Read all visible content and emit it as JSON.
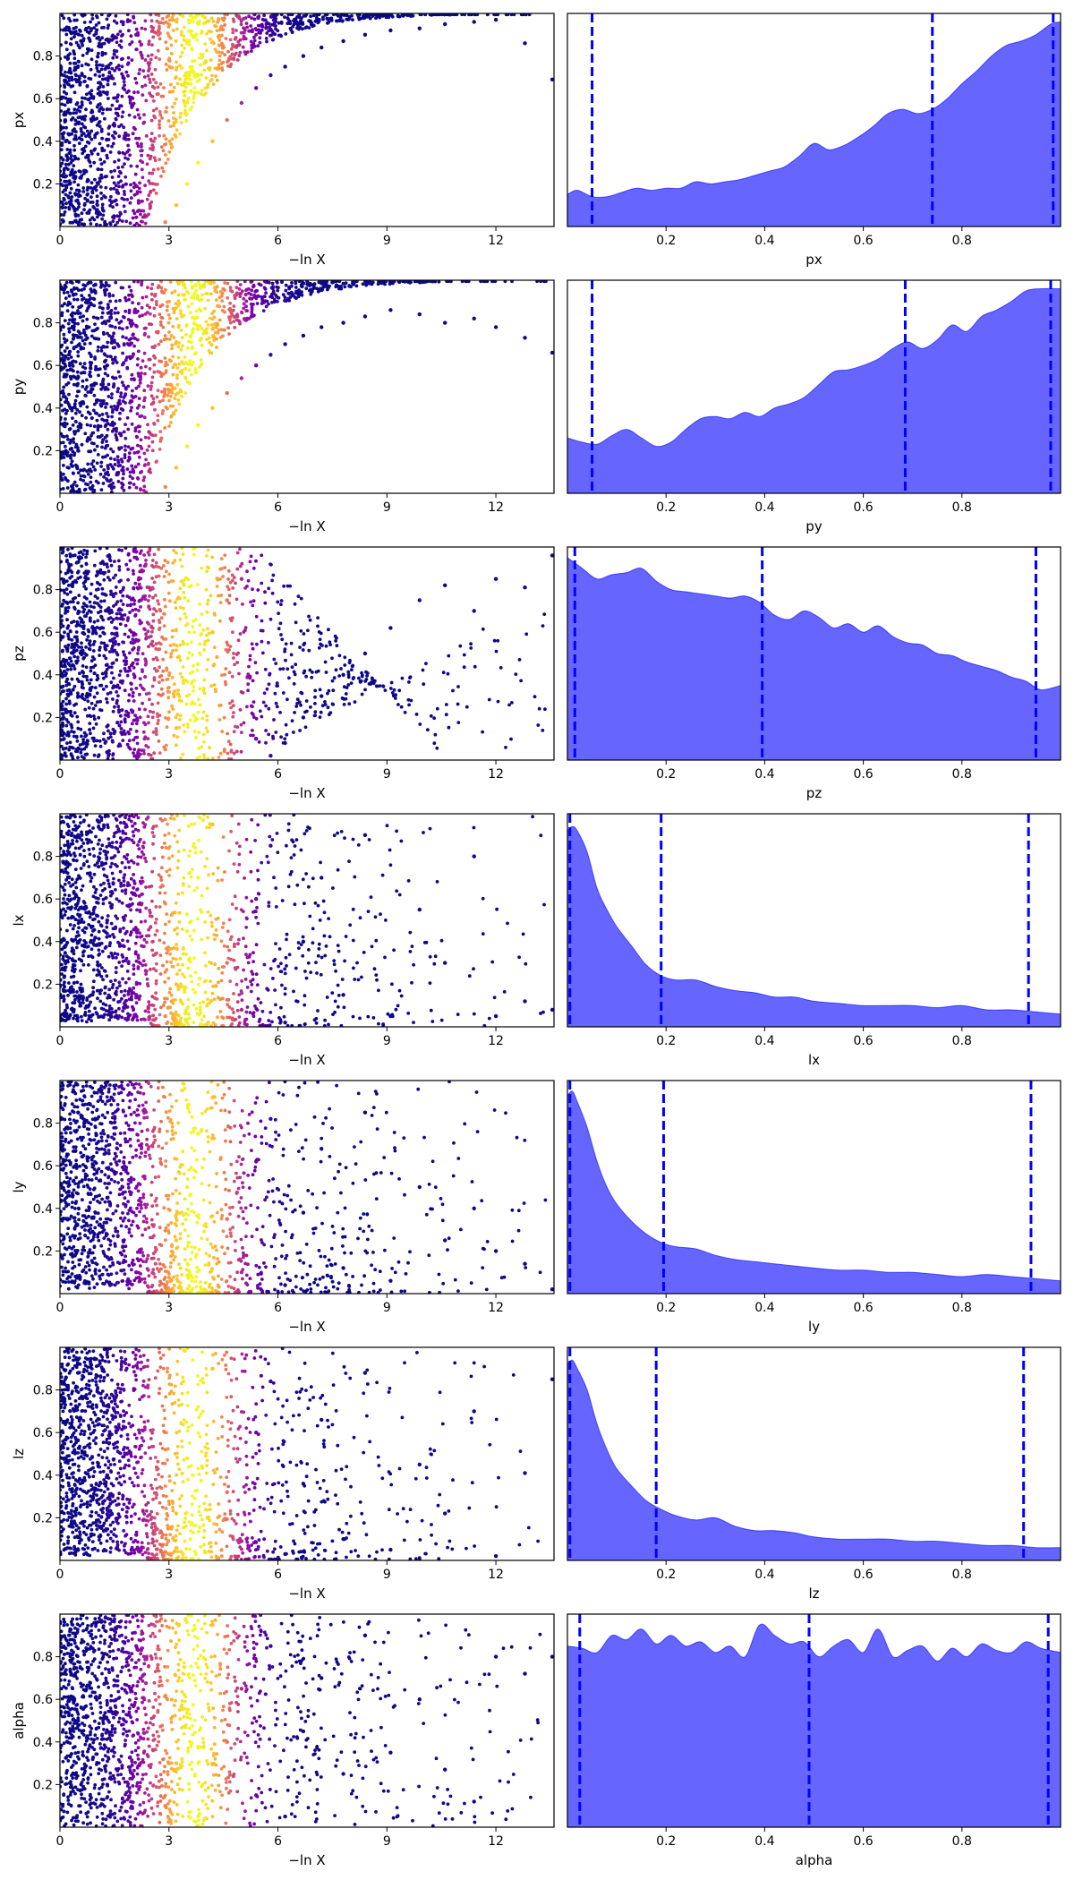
{
  "colors": {
    "posterior_fill": "#6666ff",
    "posterior_line": "#0000ff",
    "quantile_line": "#0000ff",
    "scatter_colormap": "plasma"
  },
  "chart_data": [
    {
      "type": "scatter",
      "param": "px",
      "xlabel": "−ln X",
      "ylabel": "px",
      "xlim": [
        0,
        13.6
      ],
      "ylim": [
        0,
        1
      ],
      "x_ticks": [
        0,
        3,
        6,
        9,
        12
      ],
      "y_ticks": [
        0.2,
        0.4,
        0.6,
        0.8
      ],
      "color_scale": "plasma, peak near −ln X ≈ 3.7",
      "x": [
        0.5,
        1.3,
        2.1,
        2.9,
        3.2,
        3.5,
        3.8,
        4.2,
        4.6,
        5.0,
        5.4,
        5.8,
        6.2,
        6.7,
        7.2,
        7.8,
        8.4,
        9.1,
        9.9,
        10.6,
        11.4,
        12.0,
        12.8,
        13.55
      ],
      "y": [
        0.15,
        0.55,
        0.9,
        0.02,
        0.1,
        0.2,
        0.3,
        0.4,
        0.5,
        0.58,
        0.65,
        0.71,
        0.75,
        0.8,
        0.84,
        0.87,
        0.9,
        0.92,
        0.93,
        0.95,
        0.96,
        0.97,
        0.86,
        0.69
      ]
    },
    {
      "type": "area",
      "param": "px",
      "xlabel": "px",
      "ylabel": "",
      "xlim": [
        0,
        1
      ],
      "ylim": [
        0,
        1
      ],
      "x_ticks": [
        0.2,
        0.4,
        0.6,
        0.8
      ],
      "x": [
        0.0,
        0.02,
        0.05,
        0.08,
        0.11,
        0.14,
        0.17,
        0.2,
        0.23,
        0.26,
        0.29,
        0.32,
        0.35,
        0.38,
        0.41,
        0.44,
        0.47,
        0.5,
        0.53,
        0.56,
        0.59,
        0.62,
        0.65,
        0.68,
        0.71,
        0.74,
        0.77,
        0.8,
        0.83,
        0.86,
        0.89,
        0.92,
        0.95,
        0.98,
        1.0
      ],
      "y": [
        0.15,
        0.17,
        0.14,
        0.14,
        0.16,
        0.18,
        0.17,
        0.18,
        0.18,
        0.21,
        0.2,
        0.21,
        0.22,
        0.24,
        0.26,
        0.28,
        0.33,
        0.39,
        0.36,
        0.38,
        0.42,
        0.47,
        0.53,
        0.55,
        0.53,
        0.55,
        0.6,
        0.67,
        0.73,
        0.8,
        0.85,
        0.87,
        0.9,
        0.95,
        0.96
      ],
      "quantiles": [
        0.05,
        0.74,
        0.985
      ]
    },
    {
      "type": "scatter",
      "param": "py",
      "xlabel": "−ln X",
      "ylabel": "py",
      "xlim": [
        0,
        13.6
      ],
      "ylim": [
        0,
        1
      ],
      "x_ticks": [
        0,
        3,
        6,
        9,
        12
      ],
      "y_ticks": [
        0.2,
        0.4,
        0.6,
        0.8
      ],
      "color_scale": "plasma, peak near −ln X ≈ 3.7",
      "x": [
        0.5,
        1.3,
        2.1,
        2.9,
        3.2,
        3.5,
        3.8,
        4.2,
        4.6,
        5.0,
        5.4,
        5.8,
        6.2,
        6.7,
        7.2,
        7.8,
        8.4,
        9.1,
        9.9,
        10.6,
        11.4,
        12.0,
        12.8,
        13.55
      ],
      "y": [
        0.2,
        0.6,
        0.85,
        0.03,
        0.12,
        0.22,
        0.32,
        0.4,
        0.47,
        0.54,
        0.6,
        0.65,
        0.7,
        0.74,
        0.78,
        0.8,
        0.83,
        0.86,
        0.84,
        0.8,
        0.82,
        0.78,
        0.73,
        0.66
      ],
      "note": "posterior panel shows quantiles"
    },
    {
      "type": "area",
      "param": "py",
      "xlabel": "py",
      "ylabel": "",
      "xlim": [
        0,
        1
      ],
      "ylim": [
        0,
        1
      ],
      "x_ticks": [
        0.2,
        0.4,
        0.6,
        0.8
      ],
      "x": [
        0.0,
        0.03,
        0.06,
        0.09,
        0.12,
        0.15,
        0.18,
        0.21,
        0.24,
        0.27,
        0.3,
        0.33,
        0.36,
        0.39,
        0.42,
        0.45,
        0.48,
        0.51,
        0.54,
        0.57,
        0.6,
        0.63,
        0.66,
        0.69,
        0.72,
        0.75,
        0.78,
        0.81,
        0.84,
        0.87,
        0.9,
        0.93,
        0.96,
        1.0
      ],
      "y": [
        0.26,
        0.24,
        0.23,
        0.27,
        0.3,
        0.26,
        0.22,
        0.24,
        0.3,
        0.35,
        0.36,
        0.35,
        0.38,
        0.36,
        0.4,
        0.42,
        0.45,
        0.51,
        0.57,
        0.58,
        0.6,
        0.63,
        0.68,
        0.71,
        0.68,
        0.72,
        0.79,
        0.76,
        0.83,
        0.86,
        0.9,
        0.95,
        0.96,
        0.96
      ],
      "quantiles": [
        0.05,
        0.685,
        0.98
      ]
    },
    {
      "type": "scatter",
      "param": "pz",
      "xlabel": "−ln X",
      "ylabel": "pz",
      "xlim": [
        0,
        13.6
      ],
      "ylim": [
        0,
        1
      ],
      "x_ticks": [
        0,
        3,
        6,
        9,
        12
      ],
      "y_ticks": [
        0.2,
        0.4,
        0.6,
        0.8
      ],
      "color_scale": "plasma, peak near −ln X ≈ 3.7",
      "x": [
        0.5,
        1.3,
        2.1,
        2.9,
        3.2,
        3.5,
        3.8,
        4.2,
        4.6,
        5.0,
        5.4,
        5.8,
        6.2,
        6.7,
        7.2,
        7.8,
        8.4,
        9.1,
        9.9,
        10.6,
        11.4,
        12.0,
        12.8,
        13.55
      ],
      "y": [
        0.3,
        0.7,
        0.95,
        0.05,
        0.15,
        0.3,
        0.45,
        0.6,
        0.75,
        0.85,
        0.1,
        0.02,
        0.08,
        0.2,
        0.3,
        0.4,
        0.5,
        0.62,
        0.75,
        0.82,
        0.7,
        0.85,
        0.81,
        0.96
      ]
    },
    {
      "type": "area",
      "param": "pz",
      "xlabel": "pz",
      "ylabel": "",
      "xlim": [
        0,
        1
      ],
      "ylim": [
        0,
        1
      ],
      "x_ticks": [
        0.2,
        0.4,
        0.6,
        0.8
      ],
      "x": [
        0.0,
        0.03,
        0.06,
        0.09,
        0.12,
        0.15,
        0.18,
        0.21,
        0.24,
        0.27,
        0.3,
        0.33,
        0.36,
        0.39,
        0.42,
        0.45,
        0.48,
        0.51,
        0.54,
        0.57,
        0.6,
        0.63,
        0.66,
        0.69,
        0.72,
        0.75,
        0.78,
        0.81,
        0.84,
        0.87,
        0.9,
        0.93,
        0.96,
        1.0
      ],
      "y": [
        0.95,
        0.9,
        0.85,
        0.87,
        0.88,
        0.9,
        0.84,
        0.8,
        0.79,
        0.78,
        0.77,
        0.76,
        0.77,
        0.74,
        0.68,
        0.66,
        0.7,
        0.67,
        0.62,
        0.64,
        0.6,
        0.63,
        0.58,
        0.55,
        0.54,
        0.5,
        0.49,
        0.46,
        0.44,
        0.42,
        0.39,
        0.37,
        0.33,
        0.35
      ],
      "quantiles": [
        0.015,
        0.395,
        0.95
      ]
    },
    {
      "type": "scatter",
      "param": "lx",
      "xlabel": "−ln X",
      "ylabel": "lx",
      "xlim": [
        0,
        13.6
      ],
      "ylim": [
        0,
        1
      ],
      "x_ticks": [
        0,
        3,
        6,
        9,
        12
      ],
      "y_ticks": [
        0.2,
        0.4,
        0.6,
        0.8
      ],
      "color_scale": "plasma, peak near −ln X ≈ 3.7",
      "x": [
        0.5,
        1.3,
        2.1,
        2.9,
        3.2,
        3.5,
        3.8,
        4.2,
        4.6,
        5.0,
        5.4,
        5.8,
        6.2,
        6.7,
        7.2,
        7.8,
        8.4,
        9.1,
        9.9,
        10.6,
        11.4,
        12.0,
        12.8,
        13.55
      ],
      "y": [
        0.9,
        0.5,
        0.15,
        0.05,
        0.2,
        0.45,
        0.7,
        0.95,
        0.3,
        0.08,
        0.6,
        0.85,
        0.02,
        0.4,
        0.7,
        0.15,
        0.9,
        0.05,
        0.55,
        0.3,
        0.8,
        0.05,
        0.12,
        0.08
      ]
    },
    {
      "type": "area",
      "param": "lx",
      "xlabel": "lx",
      "ylabel": "",
      "xlim": [
        0,
        1
      ],
      "ylim": [
        0,
        1
      ],
      "x_ticks": [
        0.2,
        0.4,
        0.6,
        0.8
      ],
      "x": [
        0.0,
        0.01,
        0.02,
        0.04,
        0.06,
        0.08,
        0.1,
        0.13,
        0.16,
        0.19,
        0.22,
        0.26,
        0.3,
        0.34,
        0.38,
        0.42,
        0.46,
        0.5,
        0.55,
        0.6,
        0.65,
        0.7,
        0.75,
        0.8,
        0.85,
        0.9,
        0.95,
        1.0
      ],
      "y": [
        0.92,
        0.94,
        0.92,
        0.82,
        0.65,
        0.55,
        0.47,
        0.38,
        0.29,
        0.24,
        0.22,
        0.22,
        0.19,
        0.17,
        0.16,
        0.14,
        0.14,
        0.12,
        0.11,
        0.1,
        0.1,
        0.1,
        0.09,
        0.1,
        0.08,
        0.08,
        0.07,
        0.06
      ],
      "quantiles": [
        0.005,
        0.19,
        0.935
      ]
    },
    {
      "type": "scatter",
      "param": "ly",
      "xlabel": "−ln X",
      "ylabel": "ly",
      "xlim": [
        0,
        13.6
      ],
      "ylim": [
        0,
        1
      ],
      "x_ticks": [
        0,
        3,
        6,
        9,
        12
      ],
      "y_ticks": [
        0.2,
        0.4,
        0.6,
        0.8
      ],
      "color_scale": "plasma, peak near −ln X ≈ 3.7",
      "x": [
        0.5,
        1.3,
        2.1,
        2.9,
        3.2,
        3.5,
        3.8,
        4.2,
        4.6,
        5.0,
        5.4,
        5.8,
        6.2,
        6.7,
        7.2,
        7.8,
        8.4,
        9.1,
        9.9,
        10.6,
        11.4,
        12.0,
        12.8,
        13.55
      ],
      "y": [
        0.85,
        0.45,
        0.1,
        0.03,
        0.25,
        0.5,
        0.75,
        0.92,
        0.35,
        0.1,
        0.62,
        0.82,
        0.04,
        0.38,
        0.68,
        0.12,
        0.85,
        0.06,
        0.5,
        0.25,
        0.4,
        0.2,
        0.14,
        0.02
      ]
    },
    {
      "type": "area",
      "param": "ly",
      "xlabel": "ly",
      "ylabel": "",
      "xlim": [
        0,
        1
      ],
      "ylim": [
        0,
        1
      ],
      "x_ticks": [
        0.2,
        0.4,
        0.6,
        0.8
      ],
      "x": [
        0.0,
        0.01,
        0.02,
        0.04,
        0.06,
        0.08,
        0.1,
        0.13,
        0.16,
        0.19,
        0.22,
        0.26,
        0.3,
        0.34,
        0.38,
        0.42,
        0.46,
        0.5,
        0.55,
        0.6,
        0.65,
        0.7,
        0.75,
        0.8,
        0.85,
        0.9,
        0.95,
        1.0
      ],
      "y": [
        0.93,
        0.95,
        0.9,
        0.78,
        0.62,
        0.5,
        0.42,
        0.34,
        0.28,
        0.24,
        0.22,
        0.21,
        0.18,
        0.16,
        0.15,
        0.14,
        0.13,
        0.12,
        0.11,
        0.11,
        0.1,
        0.1,
        0.09,
        0.08,
        0.09,
        0.08,
        0.07,
        0.06
      ],
      "quantiles": [
        0.005,
        0.195,
        0.94
      ]
    },
    {
      "type": "scatter",
      "param": "lz",
      "xlabel": "−ln X",
      "ylabel": "lz",
      "xlim": [
        0,
        13.6
      ],
      "ylim": [
        0,
        1
      ],
      "x_ticks": [
        0,
        3,
        6,
        9,
        12
      ],
      "y_ticks": [
        0.2,
        0.4,
        0.6,
        0.8
      ],
      "color_scale": "plasma, peak near −ln X ≈ 3.7",
      "x": [
        0.5,
        1.3,
        2.1,
        2.9,
        3.2,
        3.5,
        3.8,
        4.2,
        4.6,
        5.0,
        5.4,
        5.8,
        6.2,
        6.7,
        7.2,
        7.8,
        8.4,
        9.1,
        9.9,
        10.6,
        11.4,
        12.0,
        12.8,
        13.55
      ],
      "y": [
        0.88,
        0.4,
        0.12,
        0.04,
        0.22,
        0.48,
        0.72,
        0.9,
        0.32,
        0.09,
        0.6,
        0.84,
        0.03,
        0.36,
        0.66,
        0.1,
        0.88,
        0.05,
        0.45,
        0.22,
        0.7,
        0.02,
        0.41,
        0.85
      ]
    },
    {
      "type": "area",
      "param": "lz",
      "xlabel": "lz",
      "ylabel": "",
      "xlim": [
        0,
        1
      ],
      "ylim": [
        0,
        1
      ],
      "x_ticks": [
        0.2,
        0.4,
        0.6,
        0.8
      ],
      "x": [
        0.0,
        0.01,
        0.02,
        0.04,
        0.06,
        0.08,
        0.1,
        0.13,
        0.16,
        0.19,
        0.22,
        0.26,
        0.3,
        0.34,
        0.38,
        0.42,
        0.46,
        0.5,
        0.55,
        0.6,
        0.65,
        0.7,
        0.75,
        0.8,
        0.85,
        0.9,
        0.95,
        1.0
      ],
      "y": [
        0.92,
        0.94,
        0.9,
        0.8,
        0.64,
        0.52,
        0.43,
        0.35,
        0.28,
        0.24,
        0.21,
        0.19,
        0.2,
        0.16,
        0.14,
        0.14,
        0.13,
        0.11,
        0.1,
        0.1,
        0.1,
        0.09,
        0.09,
        0.08,
        0.07,
        0.07,
        0.06,
        0.06
      ],
      "quantiles": [
        0.005,
        0.18,
        0.925
      ]
    },
    {
      "type": "scatter",
      "param": "alpha",
      "xlabel": "−ln X",
      "ylabel": "alpha",
      "xlim": [
        0,
        13.6
      ],
      "ylim": [
        0,
        1
      ],
      "x_ticks": [
        0,
        3,
        6,
        9,
        12
      ],
      "y_ticks": [
        0.2,
        0.4,
        0.6,
        0.8
      ],
      "color_scale": "plasma, peak near −ln X ≈ 3.7",
      "x": [
        0.5,
        1.3,
        2.1,
        2.9,
        3.2,
        3.5,
        3.8,
        4.2,
        4.6,
        5.0,
        5.4,
        5.8,
        6.2,
        6.7,
        7.2,
        7.8,
        8.4,
        9.1,
        9.9,
        10.6,
        11.4,
        12.0,
        12.8,
        13.55
      ],
      "y": [
        0.5,
        0.2,
        0.85,
        0.1,
        0.3,
        0.55,
        0.75,
        0.95,
        0.4,
        0.65,
        0.15,
        0.85,
        0.05,
        0.45,
        0.7,
        0.25,
        0.9,
        0.35,
        0.6,
        0.27,
        0.12,
        0.8,
        0.72,
        0.8
      ]
    },
    {
      "type": "area",
      "param": "alpha",
      "xlabel": "alpha",
      "ylabel": "",
      "xlim": [
        0,
        1
      ],
      "ylim": [
        0,
        1
      ],
      "x_ticks": [
        0.2,
        0.4,
        0.6,
        0.8
      ],
      "x": [
        0.0,
        0.03,
        0.06,
        0.09,
        0.12,
        0.15,
        0.18,
        0.21,
        0.24,
        0.27,
        0.3,
        0.33,
        0.36,
        0.39,
        0.42,
        0.45,
        0.48,
        0.51,
        0.54,
        0.57,
        0.6,
        0.63,
        0.66,
        0.69,
        0.72,
        0.75,
        0.78,
        0.81,
        0.84,
        0.87,
        0.9,
        0.93,
        0.96,
        1.0
      ],
      "y": [
        0.85,
        0.84,
        0.82,
        0.9,
        0.88,
        0.93,
        0.86,
        0.9,
        0.85,
        0.87,
        0.82,
        0.85,
        0.8,
        0.95,
        0.9,
        0.86,
        0.87,
        0.8,
        0.85,
        0.88,
        0.82,
        0.93,
        0.8,
        0.83,
        0.85,
        0.78,
        0.84,
        0.8,
        0.86,
        0.83,
        0.82,
        0.87,
        0.84,
        0.82
      ],
      "quantiles": [
        0.025,
        0.49,
        0.975
      ]
    }
  ]
}
